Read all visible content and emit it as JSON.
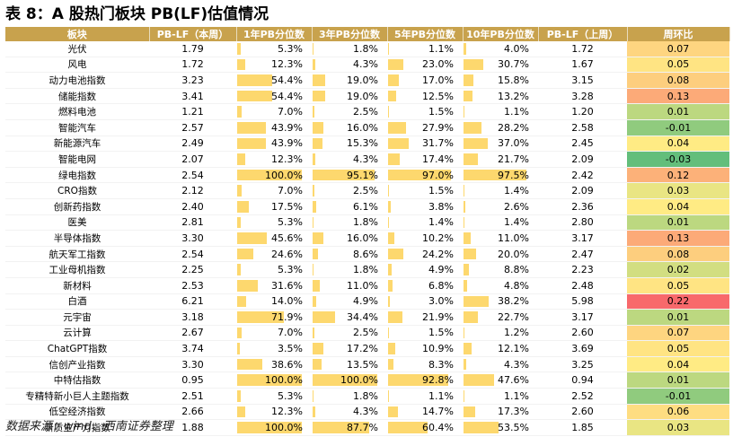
{
  "title": "表 8：A 股热门板块 PB(LF)估值情况",
  "source": "数据来源：wind、西南证券整理",
  "colors": {
    "header_bg": "#c8a24d",
    "bar": "#fdd86e",
    "change_green": "#63be7b",
    "change_yellow": "#ffeb84",
    "change_red": "#f8696b"
  },
  "table": {
    "headers": [
      "板块",
      "PB-LF（本周）",
      "1年PB分位数",
      "3年PB分位数",
      "5年PB分位数",
      "10年PB分位数",
      "PB-LF（上周）",
      "周环比"
    ],
    "rows": [
      {
        "name": "光伏",
        "pb": "1.79",
        "p1": "5.3%",
        "p3": "1.8%",
        "p5": "1.1%",
        "p10": "4.0%",
        "prev": "1.72",
        "chg": "0.07"
      },
      {
        "name": "风电",
        "pb": "1.72",
        "p1": "12.3%",
        "p3": "4.3%",
        "p5": "23.0%",
        "p10": "30.7%",
        "prev": "1.67",
        "chg": "0.05"
      },
      {
        "name": "动力电池指数",
        "pb": "3.23",
        "p1": "54.4%",
        "p3": "19.0%",
        "p5": "17.0%",
        "p10": "15.8%",
        "prev": "3.15",
        "chg": "0.08"
      },
      {
        "name": "储能指数",
        "pb": "3.41",
        "p1": "54.4%",
        "p3": "19.0%",
        "p5": "12.5%",
        "p10": "13.2%",
        "prev": "3.28",
        "chg": "0.13"
      },
      {
        "name": "燃料电池",
        "pb": "1.21",
        "p1": "7.0%",
        "p3": "2.5%",
        "p5": "1.5%",
        "p10": "1.1%",
        "prev": "1.20",
        "chg": "0.01"
      },
      {
        "name": "智能汽车",
        "pb": "2.57",
        "p1": "43.9%",
        "p3": "16.0%",
        "p5": "27.9%",
        "p10": "28.2%",
        "prev": "2.58",
        "chg": "-0.01"
      },
      {
        "name": "新能源汽车",
        "pb": "2.49",
        "p1": "43.9%",
        "p3": "15.3%",
        "p5": "31.7%",
        "p10": "37.0%",
        "prev": "2.45",
        "chg": "0.04"
      },
      {
        "name": "智能电网",
        "pb": "2.07",
        "p1": "12.3%",
        "p3": "4.3%",
        "p5": "17.4%",
        "p10": "21.7%",
        "prev": "2.09",
        "chg": "-0.03"
      },
      {
        "name": "绿电指数",
        "pb": "2.54",
        "p1": "100.0%",
        "p3": "95.1%",
        "p5": "97.0%",
        "p10": "97.5%",
        "prev": "2.42",
        "chg": "0.12"
      },
      {
        "name": "CRO指数",
        "pb": "2.12",
        "p1": "7.0%",
        "p3": "2.5%",
        "p5": "1.5%",
        "p10": "1.4%",
        "prev": "2.09",
        "chg": "0.03"
      },
      {
        "name": "创新药指数",
        "pb": "2.40",
        "p1": "17.5%",
        "p3": "6.1%",
        "p5": "3.8%",
        "p10": "2.6%",
        "prev": "2.36",
        "chg": "0.04"
      },
      {
        "name": "医美",
        "pb": "2.81",
        "p1": "5.3%",
        "p3": "1.8%",
        "p5": "1.4%",
        "p10": "1.4%",
        "prev": "2.80",
        "chg": "0.01"
      },
      {
        "name": "半导体指数",
        "pb": "3.30",
        "p1": "45.6%",
        "p3": "16.0%",
        "p5": "10.2%",
        "p10": "11.0%",
        "prev": "3.17",
        "chg": "0.13"
      },
      {
        "name": "航天军工指数",
        "pb": "2.54",
        "p1": "24.6%",
        "p3": "8.6%",
        "p5": "24.2%",
        "p10": "20.0%",
        "prev": "2.47",
        "chg": "0.08"
      },
      {
        "name": "工业母机指数",
        "pb": "2.25",
        "p1": "5.3%",
        "p3": "1.8%",
        "p5": "4.9%",
        "p10": "8.8%",
        "prev": "2.23",
        "chg": "0.02"
      },
      {
        "name": "新材料",
        "pb": "2.53",
        "p1": "31.6%",
        "p3": "11.0%",
        "p5": "6.8%",
        "p10": "4.8%",
        "prev": "2.48",
        "chg": "0.05"
      },
      {
        "name": "白酒",
        "pb": "6.21",
        "p1": "14.0%",
        "p3": "4.9%",
        "p5": "3.0%",
        "p10": "38.2%",
        "prev": "5.98",
        "chg": "0.22"
      },
      {
        "name": "元宇宙",
        "pb": "3.18",
        "p1": "71.9%",
        "p3": "34.4%",
        "p5": "21.9%",
        "p10": "22.7%",
        "prev": "3.17",
        "chg": "0.01"
      },
      {
        "name": "云计算",
        "pb": "2.67",
        "p1": "7.0%",
        "p3": "2.5%",
        "p5": "1.5%",
        "p10": "1.2%",
        "prev": "2.60",
        "chg": "0.07"
      },
      {
        "name": "ChatGPT指数",
        "pb": "3.74",
        "p1": "3.5%",
        "p3": "17.2%",
        "p5": "10.9%",
        "p10": "12.1%",
        "prev": "3.69",
        "chg": "0.05"
      },
      {
        "name": "信创产业指数",
        "pb": "3.30",
        "p1": "38.6%",
        "p3": "13.5%",
        "p5": "8.3%",
        "p10": "4.3%",
        "prev": "3.25",
        "chg": "0.04"
      },
      {
        "name": "中特估指数",
        "pb": "0.95",
        "p1": "100.0%",
        "p3": "100.0%",
        "p5": "92.8%",
        "p10": "47.6%",
        "prev": "0.94",
        "chg": "0.01"
      },
      {
        "name": "专精特新小巨人主题指数",
        "pb": "2.51",
        "p1": "5.3%",
        "p3": "1.8%",
        "p5": "1.1%",
        "p10": "1.1%",
        "prev": "2.52",
        "chg": "-0.01"
      },
      {
        "name": "低空经济指数",
        "pb": "2.66",
        "p1": "12.3%",
        "p3": "4.3%",
        "p5": "14.7%",
        "p10": "17.3%",
        "prev": "2.60",
        "chg": "0.06"
      },
      {
        "name": "新质生产力指数",
        "pb": "1.88",
        "p1": "100.0%",
        "p3": "87.7%",
        "p5": "60.4%",
        "p10": "53.5%",
        "prev": "1.85",
        "chg": "0.03"
      }
    ]
  }
}
